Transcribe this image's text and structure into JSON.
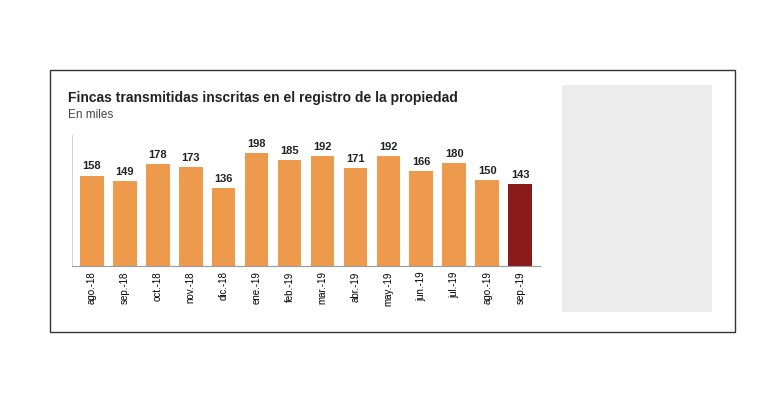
{
  "chart_data": {
    "type": "bar",
    "title": "Fincas transmitidas inscritas en el registro de la propiedad",
    "subtitle": "En miles",
    "categories": [
      "ago.-18",
      "sep.-18",
      "oct.-18",
      "nov.-18",
      "dic.-18",
      "ene.-19",
      "feb.-19",
      "mar.-19",
      "abr.-19",
      "may.-19",
      "jun.-19",
      "jul.-19",
      "ago.-19",
      "sep.-19"
    ],
    "values": [
      158,
      149,
      178,
      173,
      136,
      198,
      185,
      192,
      171,
      192,
      166,
      180,
      150,
      143
    ],
    "colors": [
      "#ee9a4d",
      "#ee9a4d",
      "#ee9a4d",
      "#ee9a4d",
      "#ee9a4d",
      "#ee9a4d",
      "#ee9a4d",
      "#ee9a4d",
      "#ee9a4d",
      "#ee9a4d",
      "#ee9a4d",
      "#ee9a4d",
      "#ee9a4d",
      "#8b1a1a"
    ],
    "ylim": [
      0,
      230
    ],
    "yticks": [],
    "data_labels": true,
    "tick_labels": "x",
    "grid": false
  }
}
